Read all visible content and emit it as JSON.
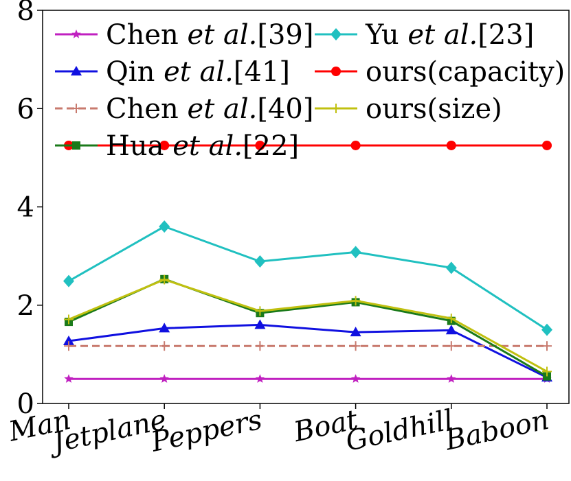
{
  "chart_data": {
    "type": "line",
    "categories": [
      "Man",
      "Jetplane",
      "Peppers",
      "Boat",
      "Goldhill",
      "Baboon"
    ],
    "ylim": [
      0,
      8
    ],
    "yticks": [
      "0",
      "2",
      "4",
      "6",
      "8"
    ],
    "grid": false,
    "legend_position": "top",
    "series": [
      {
        "name": "Chen et al.[39]",
        "name_parts": [
          "Chen ",
          "et al.",
          "[39]"
        ],
        "color": "#c020c0",
        "marker": "star",
        "dash": "solid",
        "values": [
          0.5,
          0.5,
          0.5,
          0.5,
          0.5,
          0.5
        ]
      },
      {
        "name": "Qin et al.[41]",
        "name_parts": [
          "Qin ",
          "et al.",
          "[41]"
        ],
        "color": "#1010e0",
        "marker": "triangle",
        "dash": "solid",
        "values": [
          1.27,
          1.53,
          1.6,
          1.45,
          1.49,
          0.53
        ]
      },
      {
        "name": "Chen et al.[40]",
        "name_parts": [
          "Chen ",
          "et al.",
          "[40]"
        ],
        "color": "#c87a6e",
        "marker": "plus",
        "dash": "dashed",
        "values": [
          1.17,
          1.17,
          1.17,
          1.17,
          1.17,
          1.17
        ]
      },
      {
        "name": "Hua et al.[22]",
        "name_parts": [
          "Hua ",
          "et al.",
          "[22]"
        ],
        "color": "#1a7a1a",
        "marker": "square",
        "dash": "solid",
        "values": [
          1.66,
          2.53,
          1.84,
          2.06,
          1.68,
          0.55
        ]
      },
      {
        "name": "Yu et al.[23]",
        "name_parts": [
          "Yu ",
          "et al.",
          "[23]"
        ],
        "color": "#20c0c0",
        "marker": "diamond",
        "dash": "solid",
        "values": [
          2.49,
          3.6,
          2.89,
          3.08,
          2.76,
          1.5
        ]
      },
      {
        "name": "ours(capacity)",
        "name_parts": [
          "ours(capacity)",
          "",
          ""
        ],
        "color": "#ff0000",
        "marker": "circle",
        "dash": "solid",
        "values": [
          5.25,
          5.25,
          5.25,
          5.25,
          5.25,
          5.25
        ]
      },
      {
        "name": "ours(size)",
        "name_parts": [
          "ours(size)",
          "",
          ""
        ],
        "color": "#c0c010",
        "marker": "plus",
        "dash": "solid",
        "values": [
          1.71,
          2.52,
          1.88,
          2.09,
          1.73,
          0.65
        ]
      }
    ]
  }
}
